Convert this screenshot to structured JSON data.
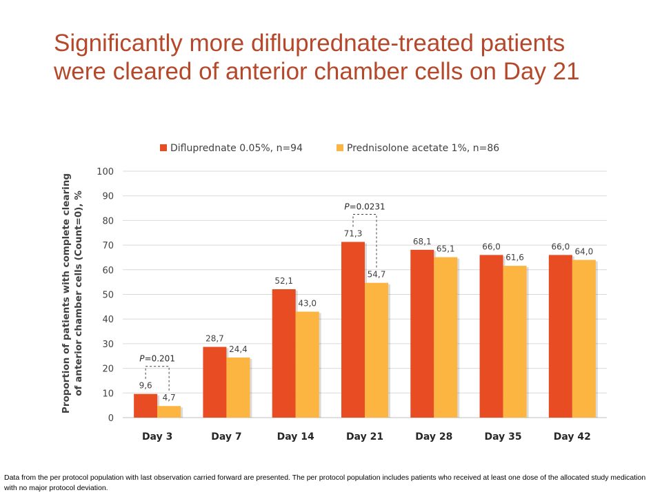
{
  "slide": {
    "title": "Significantly more difluprednate-treated patients were cleared of anterior chamber cells on Day 21",
    "footnote": "Data from the per protocol population with last observation carried forward are presented. The per protocol population includes patients who received at least one dose of the allocated study medication with no major protocol deviation."
  },
  "chart_data": {
    "type": "bar",
    "title": "",
    "xlabel": "",
    "ylabel": "Proportion of patients with complete clearing of anterior chamber cells (Count=0), %",
    "ylabel_lines": [
      "Proportion of patients with complete clearing",
      "of anterior chamber cells (Count=0), %"
    ],
    "categories": [
      "Day 3",
      "Day 7",
      "Day 14",
      "Day 21",
      "Day 28",
      "Day 35",
      "Day 42"
    ],
    "series": [
      {
        "name": "Difluprednate 0.05%, n=94",
        "color": "#e84c22",
        "values": [
          9.6,
          28.7,
          52.1,
          71.3,
          68.1,
          66.0,
          66.0
        ],
        "labels": [
          "9,6",
          "28,7",
          "52,1",
          "71,3",
          "68,1",
          "66,0",
          "66,0"
        ]
      },
      {
        "name": "Prednisolone acetate 1%, n=86",
        "color": "#fbb540",
        "values": [
          4.7,
          24.4,
          43.0,
          54.7,
          65.1,
          61.6,
          64.0
        ],
        "labels": [
          "4,7",
          "24,4",
          "43,0",
          "54,7",
          "65,1",
          "61,6",
          "64,0"
        ]
      }
    ],
    "ylim": [
      0,
      100
    ],
    "yticks": [
      0,
      10,
      20,
      30,
      40,
      50,
      60,
      70,
      80,
      90,
      100
    ],
    "grid": true,
    "legend": "top",
    "annotations": [
      {
        "category": "Day 3",
        "p_prefix": "P",
        "p_text": "=0.201"
      },
      {
        "category": "Day 21",
        "p_prefix": "P",
        "p_text": "=0.0231"
      }
    ]
  }
}
